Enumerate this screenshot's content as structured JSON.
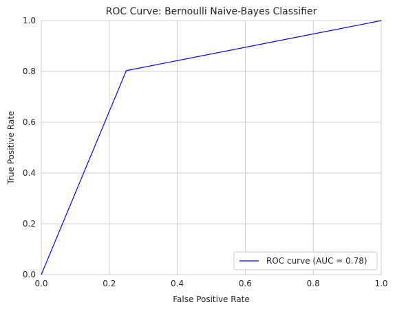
{
  "chart_data": {
    "type": "line",
    "title": "ROC Curve: Bernoulli Naive-Bayes Classifier",
    "xlabel": "False Positive Rate",
    "ylabel": "True Positive Rate",
    "xlim": [
      0.0,
      1.0
    ],
    "ylim": [
      0.0,
      1.0
    ],
    "xticks": [
      "0.0",
      "0.2",
      "0.4",
      "0.6",
      "0.8",
      "1.0"
    ],
    "yticks": [
      "0.0",
      "0.2",
      "0.4",
      "0.6",
      "0.8",
      "1.0"
    ],
    "grid": true,
    "legend_position": "lower-right",
    "series": [
      {
        "name": "ROC curve (AUC = 0.78)",
        "color": "#0000ff",
        "x": [
          0.0,
          0.25,
          1.0
        ],
        "y": [
          0.0,
          0.803,
          1.0
        ]
      }
    ]
  }
}
